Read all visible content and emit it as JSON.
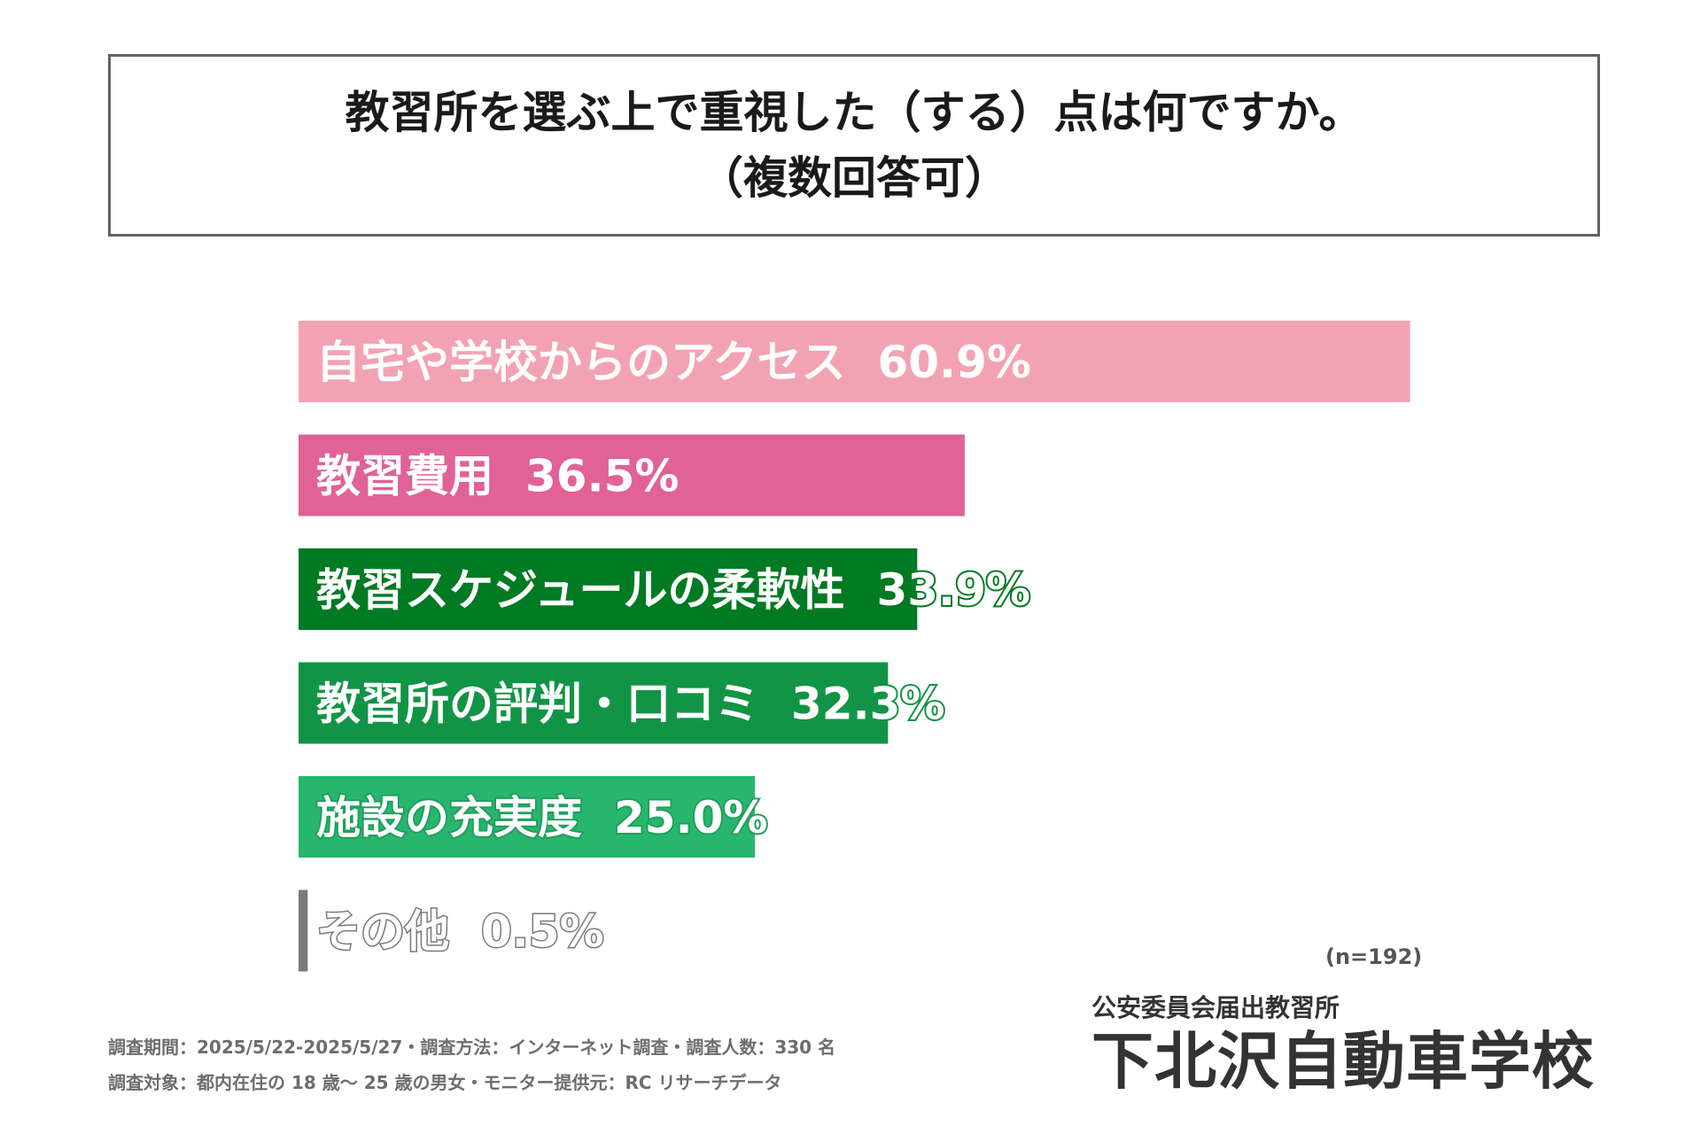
{
  "title": {
    "line1": "教習所を選ぶ上で重視した（する）点は何ですか。",
    "line2": "（複数回答可）"
  },
  "chart_data": {
    "type": "bar",
    "orientation": "horizontal",
    "categories": [
      "自宅や学校からのアクセス",
      "教習費用",
      "教習スケジュールの柔軟性",
      "教習所の評判・口コミ",
      "施設の充実度",
      "その他"
    ],
    "values": [
      60.9,
      36.5,
      33.9,
      32.3,
      25.0,
      0.5
    ],
    "value_labels": [
      "60.9%",
      "36.5%",
      "33.9%",
      "32.3%",
      "25.0%",
      "0.5%"
    ],
    "unit": "%",
    "xlim": [
      0,
      100
    ],
    "colors": [
      "#f2a3b3",
      "#e06297",
      "#007a23",
      "#129447",
      "#28b66e",
      "#7a7a7a"
    ],
    "grid": false,
    "legend": "none"
  },
  "sample_size": "(n=192)",
  "notes": {
    "line1": "調査期間：2025/5/22-2025/5/27・調査方法：インターネット調査・調査人数：330 名",
    "line2": "調査対象：都内在住の 18 歳～ 25 歳の男女・モニター提供元：RC リサーチデータ"
  },
  "brand": {
    "subtitle": "公安委員会届出教習所",
    "name": "下北沢自動車学校"
  }
}
